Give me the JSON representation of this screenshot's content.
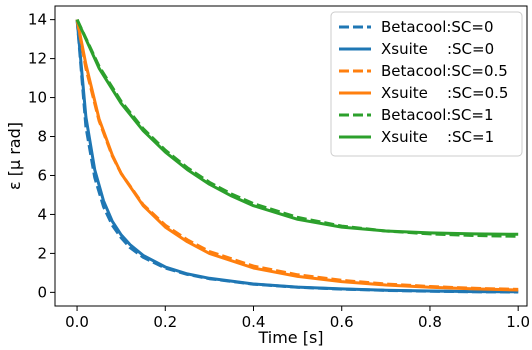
{
  "chart_data": {
    "type": "line",
    "title": "",
    "xlabel": "Time [s]",
    "ylabel": "ε [μ rad]",
    "xlim": [
      -0.05,
      1.02
    ],
    "ylim": [
      -0.7,
      14.7
    ],
    "x_ticks": [
      0.0,
      0.2,
      0.4,
      0.6,
      0.8,
      1.0
    ],
    "x_tick_labels": [
      "0.0",
      "0.2",
      "0.4",
      "0.6",
      "0.8",
      "1.0"
    ],
    "y_ticks": [
      0,
      2,
      4,
      6,
      8,
      10,
      12,
      14
    ],
    "y_tick_labels": [
      "0",
      "2",
      "4",
      "6",
      "8",
      "10",
      "12",
      "14"
    ],
    "grid": false,
    "legend_position": "top-right",
    "series": [
      {
        "name": "Betacool:SC=0",
        "color": "#1f77b4",
        "style": "dashed",
        "x": [
          0,
          0.02,
          0.04,
          0.06,
          0.08,
          0.1,
          0.12,
          0.15,
          0.2,
          0.25,
          0.3,
          0.4,
          0.5,
          0.6,
          0.7,
          0.8,
          0.9,
          1.0
        ],
        "y": [
          14.0,
          8.5,
          5.9,
          4.4,
          3.45,
          2.8,
          2.3,
          1.8,
          1.25,
          0.92,
          0.7,
          0.42,
          0.26,
          0.17,
          0.1,
          0.06,
          0.03,
          0.02
        ]
      },
      {
        "name": "Xsuite    :SC=0",
        "color": "#1f77b4",
        "style": "solid",
        "x": [
          0,
          0.02,
          0.04,
          0.06,
          0.08,
          0.1,
          0.12,
          0.15,
          0.2,
          0.25,
          0.3,
          0.4,
          0.5,
          0.6,
          0.7,
          0.8,
          0.9,
          1.0
        ],
        "y": [
          14.0,
          9.0,
          6.3,
          4.7,
          3.65,
          2.95,
          2.45,
          1.9,
          1.3,
          0.95,
          0.72,
          0.43,
          0.27,
          0.18,
          0.11,
          0.07,
          0.04,
          0.03
        ]
      },
      {
        "name": "Betacool:SC=0.5",
        "color": "#ff7f0e",
        "style": "dashed",
        "x": [
          0,
          0.02,
          0.05,
          0.08,
          0.1,
          0.15,
          0.2,
          0.25,
          0.3,
          0.4,
          0.5,
          0.6,
          0.7,
          0.8,
          0.9,
          1.0
        ],
        "y": [
          14.0,
          11.5,
          8.8,
          7.0,
          6.1,
          4.5,
          3.45,
          2.7,
          2.1,
          1.35,
          0.9,
          0.62,
          0.43,
          0.3,
          0.21,
          0.15
        ]
      },
      {
        "name": "Xsuite    :SC=0.5",
        "color": "#ff7f0e",
        "style": "solid",
        "x": [
          0,
          0.02,
          0.05,
          0.08,
          0.1,
          0.15,
          0.2,
          0.25,
          0.3,
          0.4,
          0.5,
          0.6,
          0.7,
          0.8,
          0.9,
          1.0
        ],
        "y": [
          14.0,
          11.7,
          8.9,
          7.05,
          6.1,
          4.45,
          3.35,
          2.6,
          2.0,
          1.25,
          0.82,
          0.55,
          0.38,
          0.26,
          0.18,
          0.12
        ]
      },
      {
        "name": "Betacool:SC=1",
        "color": "#2ca02c",
        "style": "dashed",
        "x": [
          0,
          0.05,
          0.1,
          0.15,
          0.2,
          0.25,
          0.3,
          0.35,
          0.4,
          0.5,
          0.6,
          0.7,
          0.8,
          0.9,
          1.0
        ],
        "y": [
          14.0,
          11.6,
          9.8,
          8.4,
          7.3,
          6.4,
          5.65,
          5.05,
          4.55,
          3.85,
          3.4,
          3.15,
          3.0,
          2.92,
          2.88
        ]
      },
      {
        "name": "Xsuite    :SC=1",
        "color": "#2ca02c",
        "style": "solid",
        "x": [
          0,
          0.05,
          0.1,
          0.15,
          0.2,
          0.25,
          0.3,
          0.35,
          0.4,
          0.5,
          0.6,
          0.7,
          0.8,
          0.9,
          1.0
        ],
        "y": [
          14.0,
          11.5,
          9.7,
          8.3,
          7.2,
          6.3,
          5.55,
          4.95,
          4.45,
          3.75,
          3.35,
          3.15,
          3.05,
          3.0,
          2.98
        ]
      }
    ]
  }
}
